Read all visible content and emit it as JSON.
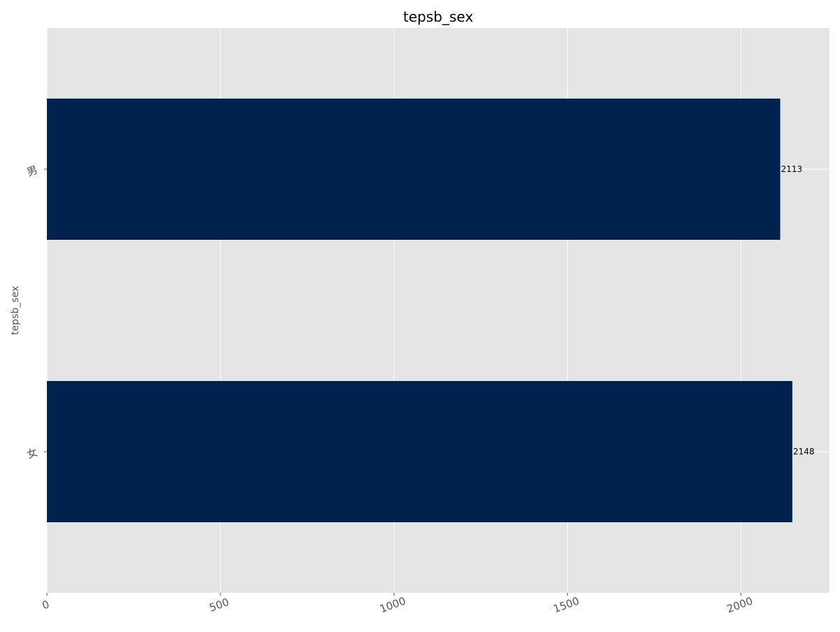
{
  "chart_data": {
    "type": "bar",
    "orientation": "horizontal",
    "title": "tepsb_sex",
    "xlabel": "",
    "ylabel": "tepsb_sex",
    "categories": [
      "女",
      "男"
    ],
    "values": [
      2148,
      2113
    ],
    "data_labels": [
      "2148",
      "2113"
    ],
    "xlim": [
      0,
      2255
    ],
    "xticks": [
      0,
      500,
      1000,
      1500,
      2000
    ],
    "xtick_labels": [
      "0",
      "500",
      "1000",
      "1500",
      "2000"
    ],
    "grid": true,
    "legend": "none"
  },
  "colors": {
    "bar": "#00224e",
    "plot_background": "#e5e5e5",
    "grid": "#ffffff",
    "tick_text": "#555555",
    "title_text": "#000000",
    "label_text": "#000000"
  }
}
